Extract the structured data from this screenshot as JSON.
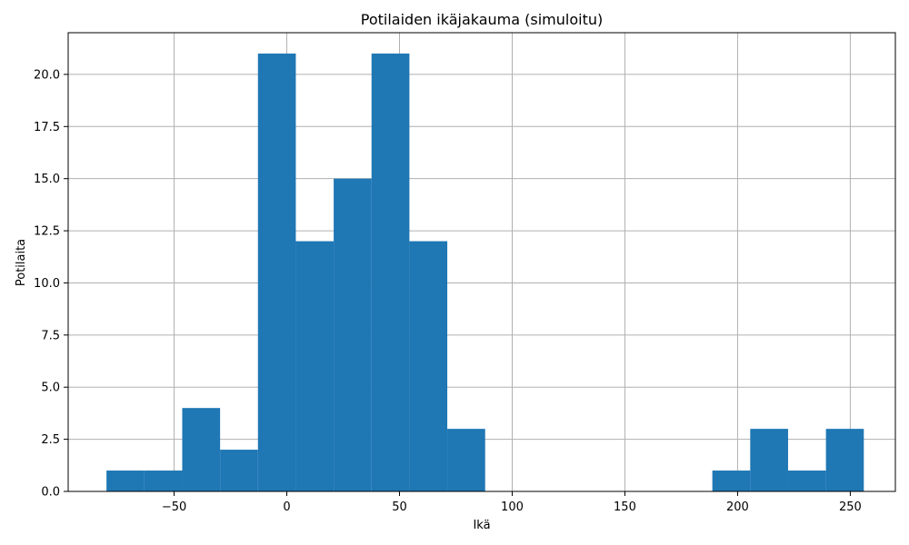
{
  "chart_data": {
    "type": "bar",
    "title": "Potilaiden ikäjakauma (simuloitu)",
    "xlabel": "Ikä",
    "ylabel": "Potilaita",
    "xlim": [
      -97,
      270
    ],
    "ylim": [
      0,
      22
    ],
    "grid": true,
    "colors": {
      "bar": "#1f77b4",
      "grid": "#b0b0b0",
      "axis": "#000000"
    },
    "x_ticks": [
      {
        "value": -50,
        "label": "−50"
      },
      {
        "value": 0,
        "label": "0"
      },
      {
        "value": 50,
        "label": "50"
      },
      {
        "value": 100,
        "label": "100"
      },
      {
        "value": 150,
        "label": "150"
      },
      {
        "value": 200,
        "label": "200"
      },
      {
        "value": 250,
        "label": "250"
      }
    ],
    "y_ticks": [
      {
        "value": 0,
        "label": "0.0"
      },
      {
        "value": 2.5,
        "label": "2.5"
      },
      {
        "value": 5,
        "label": "5.0"
      },
      {
        "value": 7.5,
        "label": "7.5"
      },
      {
        "value": 10,
        "label": "10.0"
      },
      {
        "value": 12.5,
        "label": "12.5"
      },
      {
        "value": 15,
        "label": "15.0"
      },
      {
        "value": 17.5,
        "label": "17.5"
      },
      {
        "value": 20,
        "label": "20.0"
      }
    ],
    "bins": [
      {
        "start": -80,
        "end": -63.2,
        "count": 1
      },
      {
        "start": -63.2,
        "end": -46.4,
        "count": 1
      },
      {
        "start": -46.4,
        "end": -29.6,
        "count": 4
      },
      {
        "start": -29.6,
        "end": -12.8,
        "count": 2
      },
      {
        "start": -12.8,
        "end": 4.0,
        "count": 21
      },
      {
        "start": 4.0,
        "end": 20.8,
        "count": 12
      },
      {
        "start": 20.8,
        "end": 37.6,
        "count": 15
      },
      {
        "start": 37.6,
        "end": 54.4,
        "count": 21
      },
      {
        "start": 54.4,
        "end": 71.2,
        "count": 12
      },
      {
        "start": 71.2,
        "end": 88.0,
        "count": 3
      },
      {
        "start": 88.0,
        "end": 104.8,
        "count": 0
      },
      {
        "start": 104.8,
        "end": 121.6,
        "count": 0
      },
      {
        "start": 121.6,
        "end": 138.4,
        "count": 0
      },
      {
        "start": 138.4,
        "end": 155.2,
        "count": 0
      },
      {
        "start": 155.2,
        "end": 172.0,
        "count": 0
      },
      {
        "start": 172.0,
        "end": 188.8,
        "count": 0
      },
      {
        "start": 188.8,
        "end": 205.6,
        "count": 1
      },
      {
        "start": 205.6,
        "end": 222.4,
        "count": 3
      },
      {
        "start": 222.4,
        "end": 239.2,
        "count": 1
      },
      {
        "start": 239.2,
        "end": 256.0,
        "count": 3
      }
    ]
  }
}
